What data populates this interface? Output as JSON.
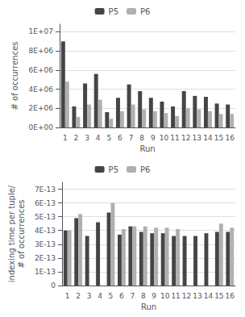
{
  "chart_data": [
    {
      "type": "bar",
      "categories": [
        "1",
        "2",
        "3",
        "4",
        "5",
        "6",
        "7",
        "8",
        "9",
        "10",
        "11",
        "12",
        "13",
        "14",
        "15",
        "16"
      ],
      "series": [
        {
          "name": "P5",
          "color": "#454545",
          "values": [
            9000000,
            2200000,
            4600000,
            5600000,
            1600000,
            3100000,
            4500000,
            3800000,
            3100000,
            2700000,
            2200000,
            3800000,
            3300000,
            3200000,
            2500000,
            2400000
          ]
        },
        {
          "name": "P6",
          "color": "#b0b0b0",
          "values": [
            4800000,
            1100000,
            2400000,
            2900000,
            900000,
            1700000,
            2400000,
            1900000,
            1700000,
            1500000,
            1200000,
            2000000,
            1900000,
            1700000,
            1400000,
            1400000
          ]
        }
      ],
      "xlabel": "Run",
      "ylabel": "# of occurrences",
      "ylim": [
        0,
        10800000
      ],
      "yticks": [
        {
          "value": 0,
          "label": "0E+00"
        },
        {
          "value": 2000000,
          "label": "2E+06"
        },
        {
          "value": 4000000,
          "label": "4E+06"
        },
        {
          "value": 6000000,
          "label": "6E+06"
        },
        {
          "value": 8000000,
          "label": "8E+06"
        },
        {
          "value": 10000000,
          "label": "1E+07"
        }
      ],
      "grid": true,
      "legend": "top"
    },
    {
      "type": "bar",
      "categories": [
        "1",
        "2",
        "3",
        "4",
        "5",
        "6",
        "7",
        "8",
        "9",
        "10",
        "11",
        "12",
        "13",
        "14",
        "15",
        "16"
      ],
      "series": [
        {
          "name": "P5",
          "color": "#454545",
          "values": [
            4e-13,
            4.9e-13,
            3.6e-13,
            4.6e-13,
            5.3e-13,
            3.7e-13,
            4.3e-13,
            3.9e-13,
            3.8e-13,
            3.8e-13,
            3.6e-13,
            3.6e-13,
            3.6e-13,
            3.8e-13,
            3.9e-13,
            3.9e-13
          ]
        },
        {
          "name": "P6",
          "color": "#b0b0b0",
          "values": [
            4e-13,
            5.2e-13,
            0,
            0,
            6e-13,
            4.1e-13,
            4.3e-13,
            4.3e-13,
            4.2e-13,
            4.2e-13,
            4.1e-13,
            0,
            0,
            0,
            4.5e-13,
            4.2e-13
          ]
        }
      ],
      "xlabel": "Run",
      "ylabel": "indexing time per tuple/\n# of occurrences",
      "ylim": [
        0,
        7.5e-13
      ],
      "yticks": [
        0,
        {
          "value": 1e-13,
          "label": "1E-13"
        },
        {
          "value": 2e-13,
          "label": "2E-13"
        },
        {
          "value": 3e-13,
          "label": "3E-13"
        },
        {
          "value": 4e-13,
          "label": "4E-13"
        },
        {
          "value": 5e-13,
          "label": "5E-13"
        },
        {
          "value": 6e-13,
          "label": "6E-13"
        },
        {
          "value": 7e-13,
          "label": "7E-13"
        }
      ],
      "grid": true,
      "legend": "top"
    }
  ]
}
